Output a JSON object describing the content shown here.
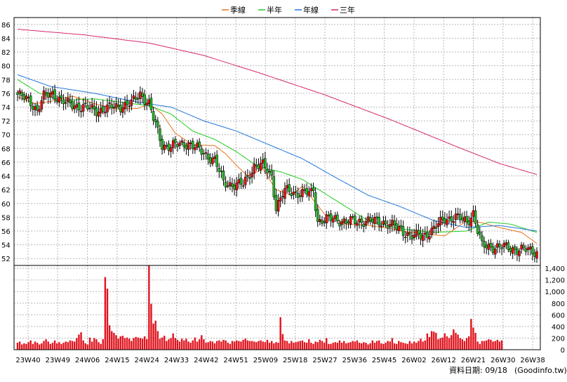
{
  "chart_data": {
    "type": "candlestick+bar",
    "legend": [
      {
        "label": "季線",
        "color": "#e8741c"
      },
      {
        "label": "半年",
        "color": "#22cc22"
      },
      {
        "label": "年線",
        "color": "#2277dd"
      },
      {
        "label": "三年",
        "color": "#d6286e"
      }
    ],
    "x_tick_labels": [
      "23W40",
      "23W49",
      "24W06",
      "24W15",
      "24W24",
      "24W33",
      "24W42",
      "24W51",
      "25W09",
      "25W18",
      "25W27",
      "25W36",
      "25W45",
      "26W02",
      "26W12",
      "26W21",
      "26W30",
      "26W38"
    ],
    "price_ylim": [
      51,
      87
    ],
    "price_ticks": [
      "52",
      "54",
      "56",
      "58",
      "60",
      "62",
      "64",
      "66",
      "68",
      "70",
      "72",
      "74",
      "76",
      "78",
      "80",
      "82",
      "84",
      "86"
    ],
    "volume_ylim": [
      0,
      1450
    ],
    "volume_ticks": [
      "0",
      "200",
      "400",
      "600",
      "800",
      "1,000",
      "1,200",
      "1,400"
    ],
    "grid": true,
    "series_lines": {
      "三年": [
        [
          0,
          85.3
        ],
        [
          30,
          84.5
        ],
        [
          60,
          83.3
        ],
        [
          85,
          81.5
        ],
        [
          110,
          79
        ],
        [
          140,
          75.8
        ],
        [
          170,
          72.2
        ],
        [
          200,
          68.3
        ],
        [
          220,
          65.8
        ],
        [
          237,
          64.2
        ]
      ],
      "年線": [
        [
          0,
          78.7
        ],
        [
          15,
          77
        ],
        [
          35,
          76
        ],
        [
          55,
          74.7
        ],
        [
          70,
          74
        ],
        [
          85,
          72
        ],
        [
          100,
          70.5
        ],
        [
          115,
          68.5
        ],
        [
          130,
          66.5
        ],
        [
          145,
          63.8
        ],
        [
          160,
          61.2
        ],
        [
          175,
          59.5
        ],
        [
          190,
          57.5
        ],
        [
          205,
          56.5
        ],
        [
          220,
          56.8
        ],
        [
          237,
          56
        ]
      ],
      "半年": [
        [
          0,
          78
        ],
        [
          10,
          76
        ],
        [
          20,
          75
        ],
        [
          35,
          75.2
        ],
        [
          50,
          74.6
        ],
        [
          60,
          74.2
        ],
        [
          70,
          73
        ],
        [
          80,
          70.5
        ],
        [
          90,
          69.3
        ],
        [
          100,
          67.5
        ],
        [
          110,
          65.3
        ],
        [
          120,
          64.6
        ],
        [
          130,
          63.5
        ],
        [
          140,
          61.5
        ],
        [
          150,
          59.5
        ],
        [
          160,
          57.5
        ],
        [
          175,
          56.3
        ],
        [
          190,
          55.8
        ],
        [
          205,
          56
        ],
        [
          215,
          57.3
        ],
        [
          225,
          57
        ],
        [
          237,
          55.8
        ]
      ],
      "季線": [
        [
          0,
          75.5
        ],
        [
          8,
          74.5
        ],
        [
          15,
          74.8
        ],
        [
          25,
          75.6
        ],
        [
          35,
          74.5
        ],
        [
          45,
          73.7
        ],
        [
          55,
          73.8
        ],
        [
          60,
          74.5
        ],
        [
          66,
          73
        ],
        [
          72,
          70.2
        ],
        [
          80,
          68.5
        ],
        [
          90,
          68.4
        ],
        [
          95,
          67.2
        ],
        [
          100,
          65.5
        ],
        [
          105,
          64
        ],
        [
          112,
          65
        ],
        [
          118,
          62
        ],
        [
          125,
          61.2
        ],
        [
          130,
          62.5
        ],
        [
          140,
          58.5
        ],
        [
          150,
          57
        ],
        [
          160,
          56.8
        ],
        [
          170,
          56.4
        ],
        [
          175,
          56
        ],
        [
          185,
          55.6
        ],
        [
          195,
          55.3
        ],
        [
          205,
          57.5
        ],
        [
          212,
          57.2
        ],
        [
          220,
          56.5
        ],
        [
          230,
          55.8
        ],
        [
          237,
          54.2
        ]
      ]
    },
    "price_waypoints": [
      [
        0,
        75.8
      ],
      [
        6,
        74.8
      ],
      [
        9,
        73.5
      ],
      [
        12,
        75.5
      ],
      [
        16,
        76
      ],
      [
        22,
        74.5
      ],
      [
        30,
        74
      ],
      [
        36,
        73.5
      ],
      [
        44,
        74
      ],
      [
        52,
        74.5
      ],
      [
        56,
        76
      ],
      [
        60,
        74.5
      ],
      [
        62,
        72.3
      ],
      [
        66,
        68.5
      ],
      [
        70,
        68.3
      ],
      [
        78,
        68.8
      ],
      [
        84,
        67.5
      ],
      [
        90,
        66.3
      ],
      [
        94,
        63
      ],
      [
        98,
        62.8
      ],
      [
        103,
        62.7
      ],
      [
        108,
        65.5
      ],
      [
        112,
        65.5
      ],
      [
        116,
        64
      ],
      [
        118,
        59.5
      ],
      [
        122,
        61.8
      ],
      [
        130,
        61.5
      ],
      [
        134,
        61.5
      ],
      [
        135,
        62
      ],
      [
        137,
        57.5
      ],
      [
        145,
        57.8
      ],
      [
        150,
        57.3
      ],
      [
        157,
        57.5
      ],
      [
        167,
        57.3
      ],
      [
        175,
        56.2
      ],
      [
        180,
        55.2
      ],
      [
        185,
        55.3
      ],
      [
        190,
        56.3
      ],
      [
        195,
        57.8
      ],
      [
        200,
        58
      ],
      [
        205,
        57.3
      ],
      [
        208,
        58.7
      ],
      [
        210,
        56
      ],
      [
        212,
        53.8
      ],
      [
        220,
        53.7
      ],
      [
        237,
        53
      ]
    ],
    "volume_bars": [
      120,
      140,
      90,
      110,
      100,
      130,
      160,
      100,
      140,
      120,
      90,
      110,
      150,
      180,
      140,
      100,
      120,
      160,
      110,
      130,
      100,
      120,
      140,
      130,
      160,
      150,
      140,
      200,
      260,
      300,
      160,
      110,
      90,
      210,
      140,
      200,
      180,
      130,
      100,
      180,
      1250,
      1050,
      420,
      320,
      290,
      250,
      190,
      230,
      240,
      200,
      210,
      190,
      150,
      200,
      220,
      210,
      200,
      190,
      230,
      180,
      1450,
      790,
      450,
      500,
      320,
      190,
      210,
      240,
      150,
      180,
      200,
      280,
      200,
      170,
      140,
      190,
      160,
      190,
      140,
      120,
      160,
      210,
      140,
      180,
      250,
      180,
      120,
      130,
      150,
      140,
      110,
      150,
      160,
      140,
      170,
      160,
      120,
      100,
      150,
      140,
      160,
      150,
      140,
      170,
      190,
      160,
      150,
      150,
      140,
      130,
      150,
      160,
      140,
      130,
      170,
      120,
      150,
      110,
      130,
      120,
      560,
      270,
      160,
      150,
      110,
      150,
      120,
      130,
      140,
      150,
      160,
      130,
      120,
      180,
      120,
      100,
      140,
      130,
      170,
      150,
      120,
      200,
      100,
      100,
      120,
      130,
      120,
      160,
      120,
      150,
      110,
      120,
      130,
      150,
      140,
      160,
      120,
      110,
      130,
      120,
      90,
      110,
      160,
      120,
      150,
      160,
      110,
      100,
      120,
      150,
      140,
      200,
      110,
      100,
      150,
      130,
      120,
      110,
      100,
      150,
      110,
      140,
      120,
      150,
      190,
      140,
      160,
      280,
      220,
      320,
      310,
      290,
      180,
      200,
      210,
      280,
      230,
      200,
      250,
      350,
      290,
      260,
      200,
      180,
      150,
      200,
      230,
      530,
      380,
      290,
      140,
      100,
      150,
      150,
      160,
      180,
      170,
      140,
      150,
      170,
      140,
      160
    ]
  },
  "footer": {
    "date_text": "資料日期: 09/18",
    "source_text": "(Goodinfo.tw)"
  }
}
